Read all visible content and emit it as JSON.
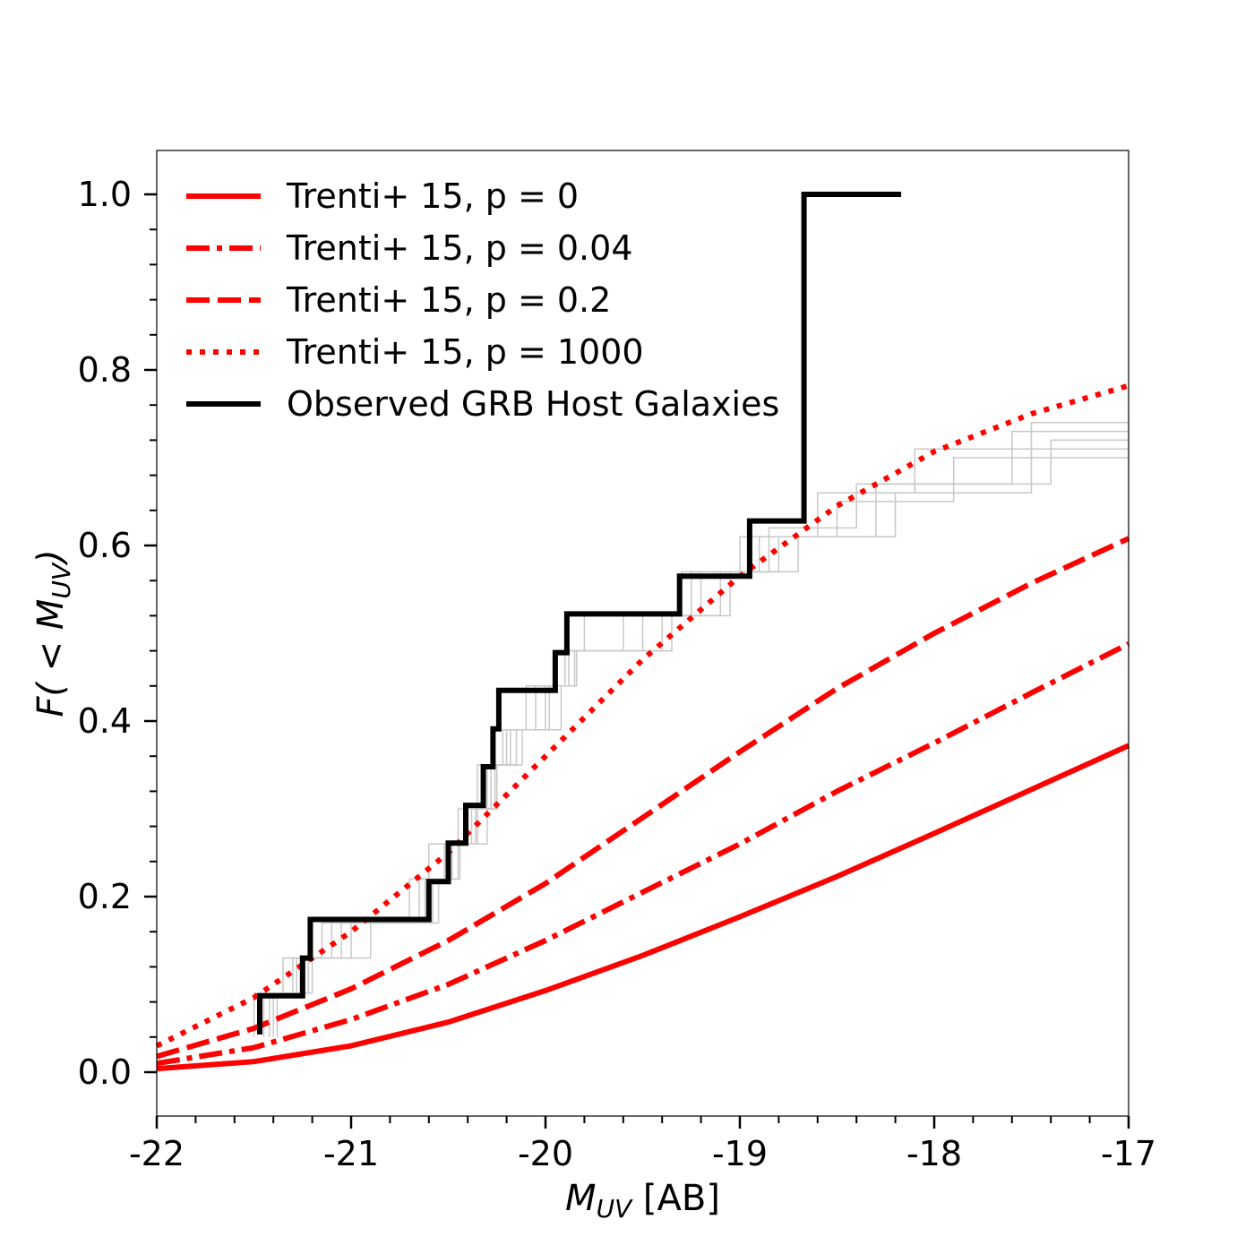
{
  "chart_data": {
    "type": "line",
    "title": "",
    "xlabel": {
      "main": "M",
      "sub": "UV",
      "suffix": " [AB]"
    },
    "ylabel": {
      "prefix": "F( < ",
      "main": "M",
      "sub": "UV",
      "suffix": ")"
    },
    "xlim": [
      -22,
      -17
    ],
    "ylim": [
      -0.05,
      1.05
    ],
    "xticks": [
      -22,
      -21,
      -20,
      -19,
      -18,
      -17
    ],
    "xtick_labels": [
      "-22",
      "-21",
      "-20",
      "-19",
      "-18",
      "-17"
    ],
    "yticks": [
      0.0,
      0.2,
      0.4,
      0.6,
      0.8,
      1.0
    ],
    "ytick_labels": [
      "0.0",
      "0.2",
      "0.4",
      "0.6",
      "0.8",
      "1.0"
    ],
    "grid": false,
    "legend_position": "top-left",
    "model_curves": [
      {
        "name": "Trenti+ 15, p = 0",
        "style": "solid",
        "color": "#ff0000",
        "x": [
          -22,
          -21.5,
          -21,
          -20.5,
          -20,
          -19.5,
          -19,
          -18.5,
          -18,
          -17.5,
          -17
        ],
        "y": [
          0.004,
          0.012,
          0.03,
          0.057,
          0.093,
          0.133,
          0.177,
          0.223,
          0.272,
          0.322,
          0.372
        ]
      },
      {
        "name": "Trenti+ 15, p = 0.04",
        "style": "dashdot",
        "color": "#ff0000",
        "x": [
          -22,
          -21.5,
          -21,
          -20.5,
          -20,
          -19.5,
          -19,
          -18.5,
          -18,
          -17.5,
          -17
        ],
        "y": [
          0.01,
          0.028,
          0.06,
          0.1,
          0.15,
          0.205,
          0.26,
          0.32,
          0.375,
          0.432,
          0.488
        ]
      },
      {
        "name": "Trenti+ 15, p = 0.2",
        "style": "dashed",
        "color": "#ff0000",
        "x": [
          -22,
          -21.5,
          -21,
          -20.5,
          -20,
          -19.5,
          -19,
          -18.5,
          -18,
          -17.5,
          -17
        ],
        "y": [
          0.018,
          0.05,
          0.095,
          0.15,
          0.215,
          0.29,
          0.365,
          0.437,
          0.5,
          0.557,
          0.608
        ]
      },
      {
        "name": "Trenti+ 15, p = 1000",
        "style": "dotted",
        "color": "#ff0000",
        "x": [
          -22,
          -21.5,
          -21,
          -20.5,
          -20,
          -19.5,
          -19,
          -18.5,
          -18,
          -17.5,
          -17
        ],
        "y": [
          0.03,
          0.085,
          0.16,
          0.25,
          0.36,
          0.47,
          0.565,
          0.645,
          0.707,
          0.75,
          0.782
        ]
      }
    ],
    "observed": {
      "name": "Observed GRB Host Galaxies",
      "style": "step",
      "color": "#000000",
      "x": [
        -21.47,
        -21.47,
        -21.25,
        -21.25,
        -21.21,
        -21.21,
        -20.6,
        -20.6,
        -20.5,
        -20.5,
        -20.41,
        -20.41,
        -20.32,
        -20.32,
        -20.27,
        -20.27,
        -20.24,
        -20.24,
        -19.95,
        -19.95,
        -19.89,
        -19.89,
        -19.31,
        -19.31,
        -18.95,
        -18.95,
        -18.67,
        -18.67,
        -18.17
      ],
      "y": [
        0.043,
        0.087,
        0.087,
        0.13,
        0.13,
        0.174,
        0.174,
        0.217,
        0.217,
        0.261,
        0.261,
        0.304,
        0.304,
        0.348,
        0.348,
        0.391,
        0.391,
        0.435,
        0.435,
        0.478,
        0.478,
        0.522,
        0.522,
        0.565,
        0.565,
        0.628,
        0.628,
        1.0,
        1.0
      ]
    },
    "realizations": {
      "color": "#c8c8c8",
      "lines": [
        {
          "x": [
            -21.45,
            -21.45,
            -21.3,
            -21.3,
            -21.15,
            -21.15,
            -20.65,
            -20.65,
            -20.52,
            -20.52,
            -20.38,
            -20.38,
            -20.3,
            -20.3,
            -20.2,
            -20.2,
            -20.1,
            -20.1,
            -19.9,
            -19.9,
            -19.8,
            -19.8,
            -19.2,
            -19.2,
            -18.9,
            -18.9,
            -18.5,
            -18.5,
            -17.9,
            -17.9,
            -17.0
          ],
          "y": [
            0.04,
            0.09,
            0.09,
            0.13,
            0.13,
            0.17,
            0.17,
            0.22,
            0.22,
            0.26,
            0.26,
            0.3,
            0.3,
            0.35,
            0.35,
            0.39,
            0.39,
            0.44,
            0.44,
            0.48,
            0.48,
            0.52,
            0.52,
            0.57,
            0.57,
            0.61,
            0.61,
            0.65,
            0.65,
            0.7,
            0.7
          ]
        },
        {
          "x": [
            -21.4,
            -21.4,
            -21.2,
            -21.2,
            -21.0,
            -21.0,
            -20.55,
            -20.55,
            -20.45,
            -20.45,
            -20.35,
            -20.35,
            -20.25,
            -20.25,
            -20.15,
            -20.15,
            -20.0,
            -20.0,
            -19.85,
            -19.85,
            -19.6,
            -19.6,
            -19.1,
            -19.1,
            -18.8,
            -18.8,
            -18.3,
            -18.3,
            -17.4,
            -17.4,
            -17.0
          ],
          "y": [
            0.04,
            0.09,
            0.09,
            0.13,
            0.13,
            0.17,
            0.17,
            0.22,
            0.22,
            0.26,
            0.26,
            0.3,
            0.3,
            0.35,
            0.35,
            0.39,
            0.39,
            0.44,
            0.44,
            0.48,
            0.48,
            0.52,
            0.52,
            0.57,
            0.57,
            0.61,
            0.61,
            0.67,
            0.67,
            0.72,
            0.72
          ]
        },
        {
          "x": [
            -21.5,
            -21.5,
            -21.35,
            -21.35,
            -21.1,
            -21.1,
            -20.7,
            -20.7,
            -20.6,
            -20.6,
            -20.45,
            -20.45,
            -20.35,
            -20.35,
            -20.22,
            -20.22,
            -20.05,
            -20.05,
            -19.95,
            -19.95,
            -19.4,
            -19.4,
            -19.3,
            -19.3,
            -19.0,
            -19.0,
            -18.6,
            -18.6,
            -18.1,
            -18.1,
            -17.0
          ],
          "y": [
            0.04,
            0.09,
            0.09,
            0.13,
            0.13,
            0.17,
            0.17,
            0.22,
            0.22,
            0.26,
            0.26,
            0.3,
            0.3,
            0.35,
            0.35,
            0.39,
            0.39,
            0.44,
            0.44,
            0.48,
            0.48,
            0.52,
            0.52,
            0.57,
            0.57,
            0.61,
            0.61,
            0.66,
            0.66,
            0.71,
            0.71
          ]
        },
        {
          "x": [
            -21.42,
            -21.42,
            -21.28,
            -21.28,
            -21.05,
            -21.05,
            -20.62,
            -20.62,
            -20.48,
            -20.48,
            -20.3,
            -20.3,
            -20.26,
            -20.26,
            -20.18,
            -20.18,
            -19.92,
            -19.92,
            -19.88,
            -19.88,
            -19.5,
            -19.5,
            -19.25,
            -19.25,
            -18.85,
            -18.85,
            -18.4,
            -18.4,
            -17.6,
            -17.6,
            -17.0
          ],
          "y": [
            0.04,
            0.09,
            0.09,
            0.13,
            0.13,
            0.17,
            0.17,
            0.22,
            0.22,
            0.26,
            0.26,
            0.3,
            0.3,
            0.35,
            0.35,
            0.39,
            0.39,
            0.44,
            0.44,
            0.48,
            0.48,
            0.52,
            0.52,
            0.57,
            0.57,
            0.62,
            0.62,
            0.67,
            0.67,
            0.73,
            0.73
          ]
        },
        {
          "x": [
            -21.38,
            -21.38,
            -21.22,
            -21.22,
            -20.9,
            -20.9,
            -20.58,
            -20.58,
            -20.44,
            -20.44,
            -20.36,
            -20.36,
            -20.28,
            -20.28,
            -20.12,
            -20.12,
            -19.98,
            -19.98,
            -19.84,
            -19.84,
            -19.35,
            -19.35,
            -19.05,
            -19.05,
            -18.7,
            -18.7,
            -18.2,
            -18.2,
            -17.5,
            -17.5,
            -17.0
          ],
          "y": [
            0.04,
            0.09,
            0.09,
            0.13,
            0.13,
            0.17,
            0.17,
            0.22,
            0.22,
            0.26,
            0.26,
            0.3,
            0.3,
            0.35,
            0.35,
            0.39,
            0.39,
            0.44,
            0.44,
            0.48,
            0.48,
            0.52,
            0.52,
            0.57,
            0.57,
            0.61,
            0.61,
            0.66,
            0.66,
            0.74,
            0.74
          ]
        }
      ]
    }
  }
}
